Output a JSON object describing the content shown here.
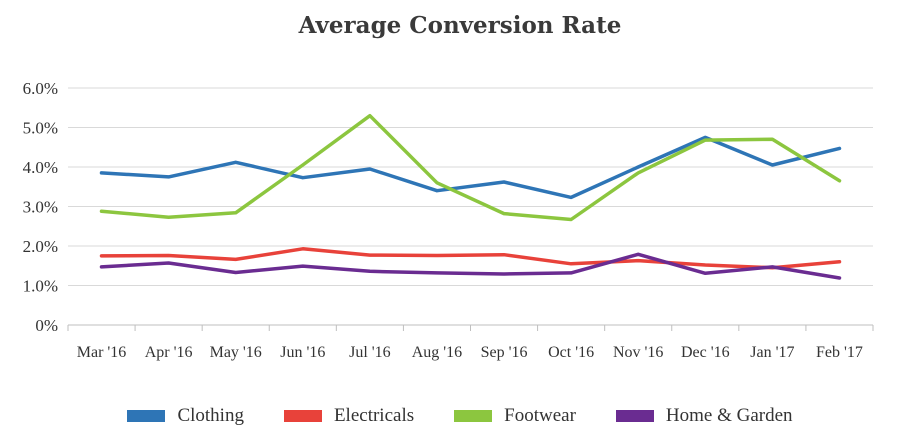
{
  "chart_data": {
    "type": "line",
    "title": "Average Conversion Rate",
    "xlabel": "",
    "ylabel": "",
    "categories": [
      "Mar '16",
      "Apr '16",
      "May '16",
      "Jun '16",
      "Jul '16",
      "Aug '16",
      "Sep '16",
      "Oct '16",
      "Nov '16",
      "Dec '16",
      "Jan '17",
      "Feb '17"
    ],
    "y_ticks": [
      "0%",
      "1.0%",
      "2.0%",
      "3.0%",
      "4.0%",
      "5.0%",
      "6.0%"
    ],
    "ylim": [
      0,
      6
    ],
    "grid": true,
    "legend_position": "bottom",
    "series": [
      {
        "name": "Clothing",
        "color": "#2e75b6",
        "values": [
          3.85,
          3.75,
          4.12,
          3.73,
          3.95,
          3.4,
          3.62,
          3.23,
          4.0,
          4.75,
          4.05,
          4.47
        ]
      },
      {
        "name": "Electricals",
        "color": "#e8423a",
        "values": [
          1.75,
          1.76,
          1.66,
          1.93,
          1.77,
          1.76,
          1.78,
          1.55,
          1.63,
          1.52,
          1.45,
          1.6
        ]
      },
      {
        "name": "Footwear",
        "color": "#8cc63f",
        "values": [
          2.88,
          2.73,
          2.84,
          4.05,
          5.3,
          3.6,
          2.82,
          2.67,
          3.85,
          4.68,
          4.7,
          3.65
        ]
      },
      {
        "name": "Home & Garden",
        "color": "#6a2c91",
        "values": [
          1.47,
          1.57,
          1.33,
          1.49,
          1.36,
          1.32,
          1.29,
          1.32,
          1.79,
          1.31,
          1.47,
          1.19
        ]
      }
    ]
  }
}
